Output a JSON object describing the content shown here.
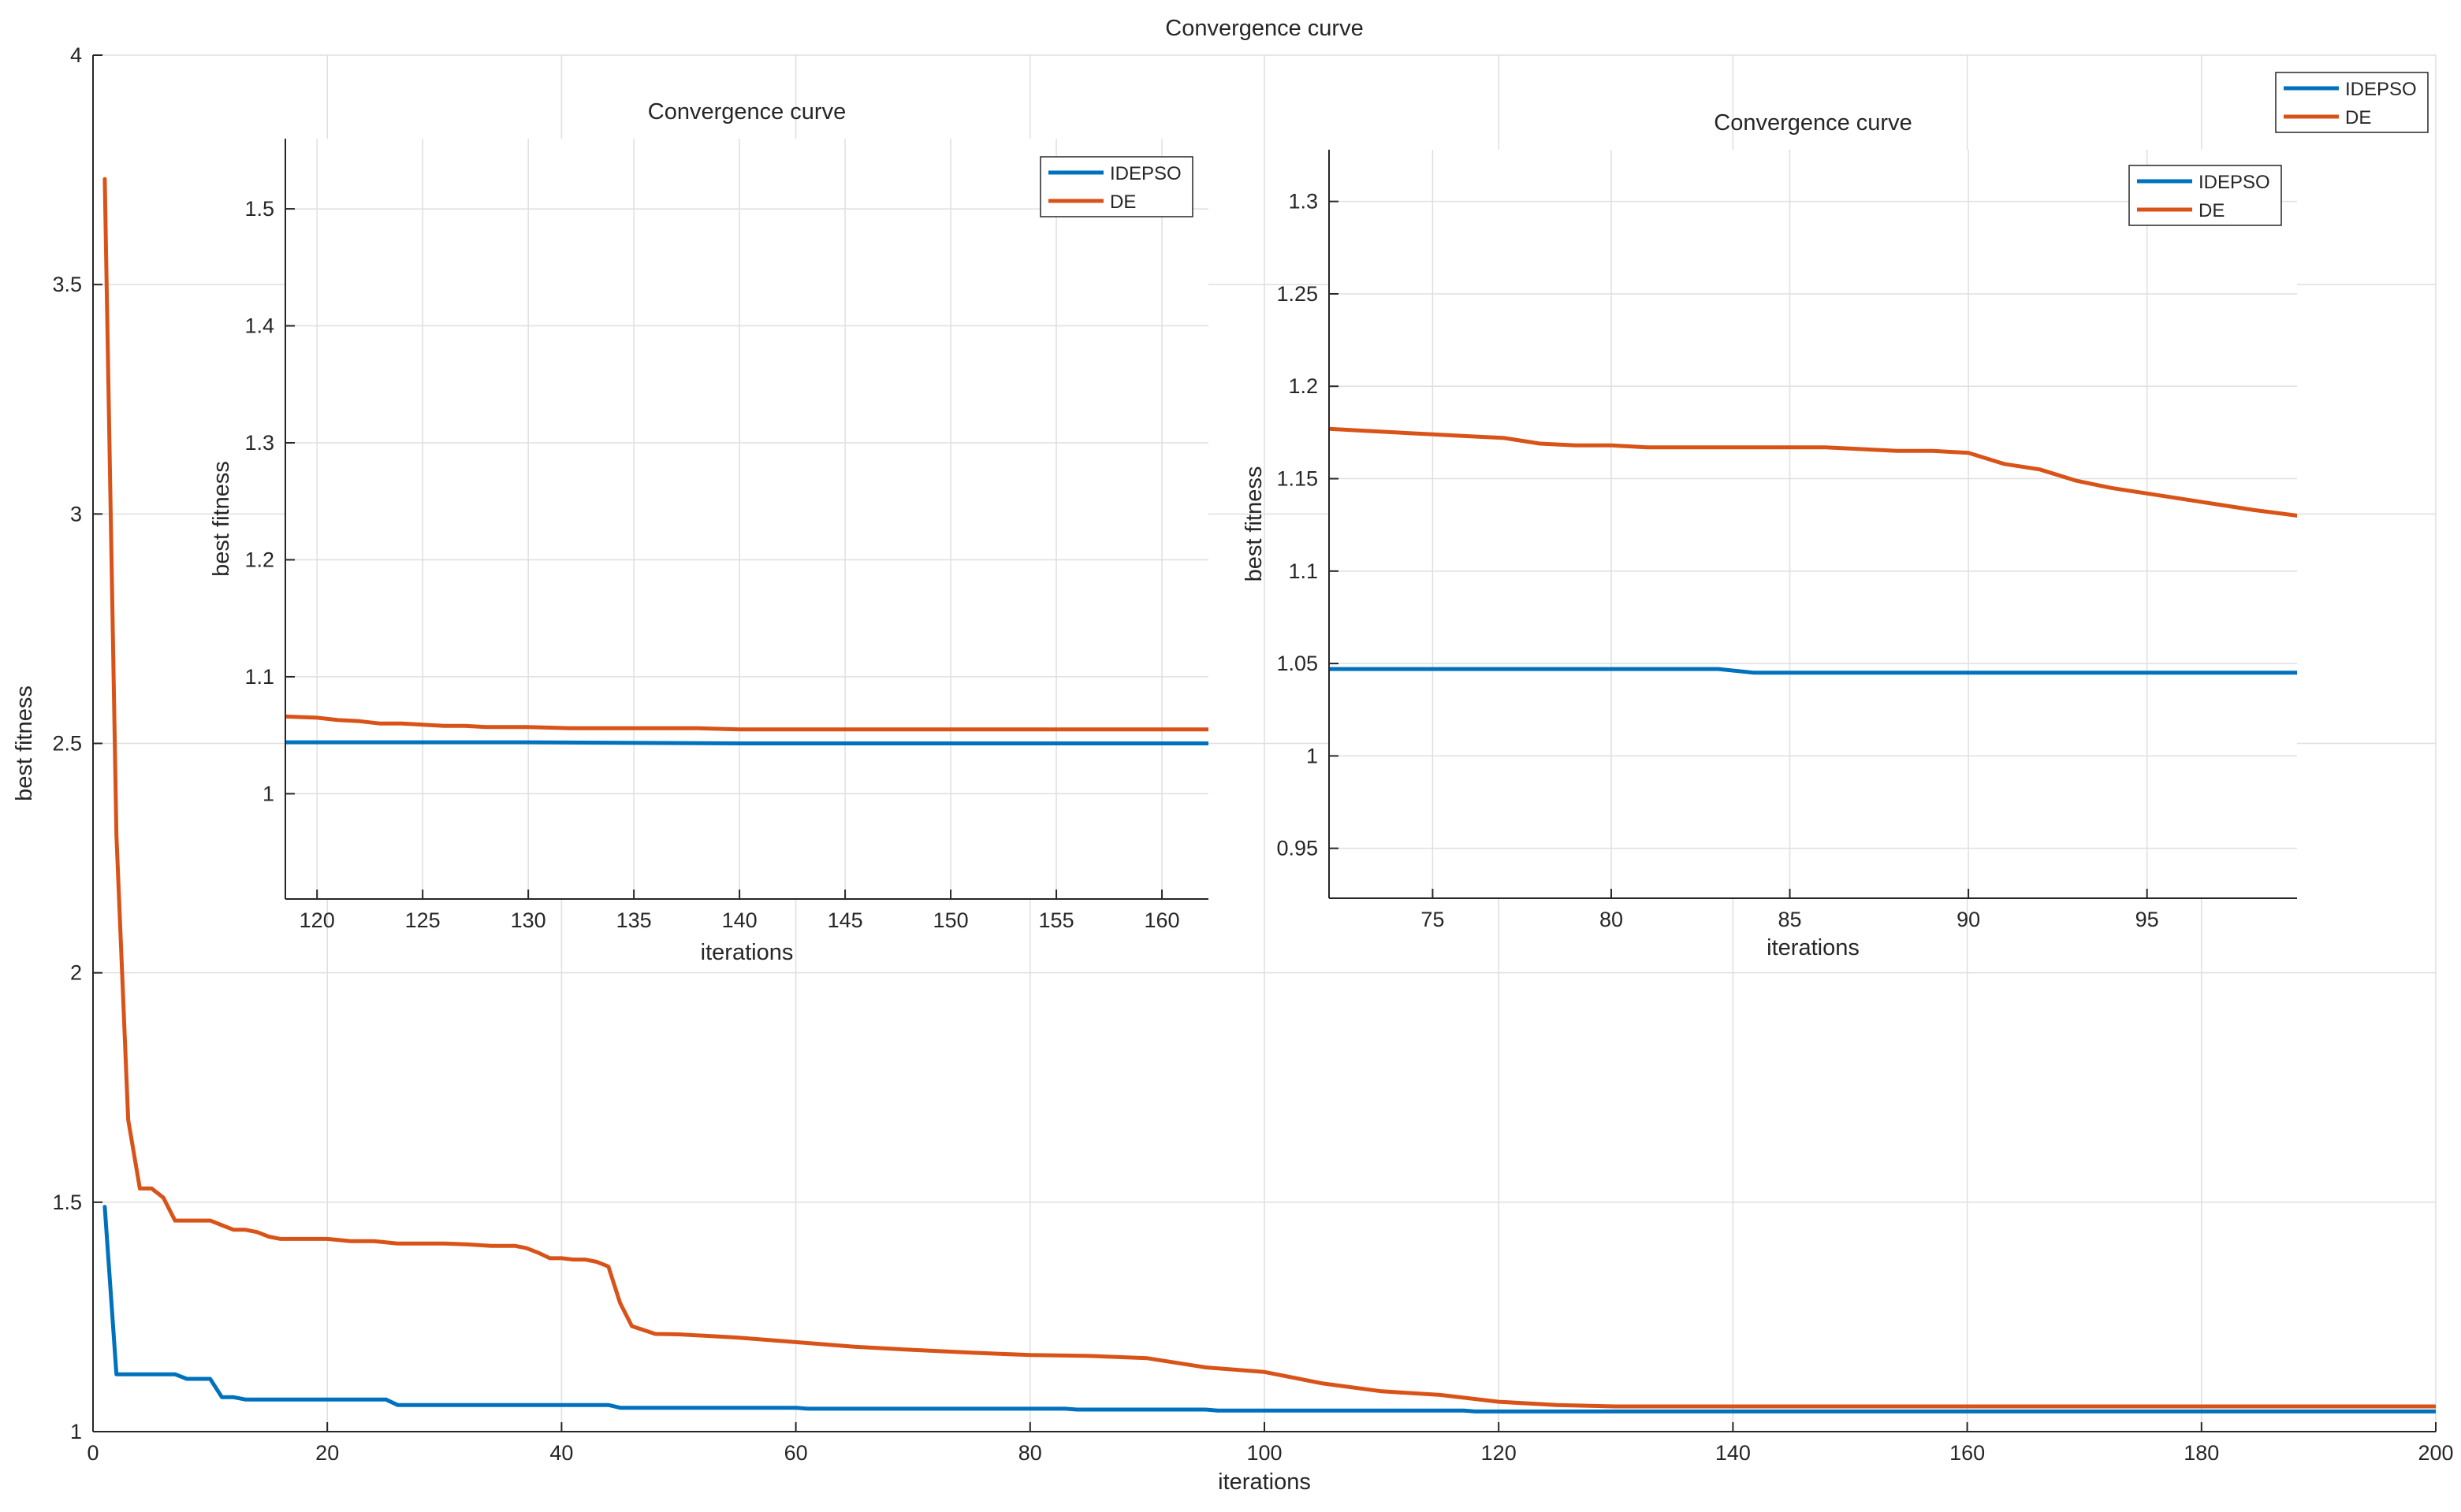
{
  "chart_data": [
    {
      "type": "line",
      "title": "Convergence curve",
      "xlabel": "iterations",
      "ylabel": "best fitness",
      "xlim": [
        0,
        200
      ],
      "ylim": [
        1,
        4
      ],
      "xticks": [
        0,
        20,
        40,
        60,
        80,
        100,
        120,
        140,
        160,
        180,
        200
      ],
      "yticks": [
        1,
        1.5,
        2,
        2.5,
        3,
        3.5,
        4
      ],
      "grid": true,
      "legend": "top-right",
      "series": [
        {
          "name": "IDEPSO",
          "color": "#0072BD",
          "x": [
            1,
            2,
            3,
            4,
            5,
            6,
            7,
            8,
            9,
            10,
            11,
            12,
            13,
            14,
            15,
            20,
            25,
            26,
            30,
            35,
            40,
            44,
            45,
            50,
            60,
            61,
            70,
            80,
            83,
            84,
            90,
            95,
            96,
            100,
            110,
            117,
            118,
            130,
            140,
            150,
            160,
            170,
            180,
            190,
            200
          ],
          "y": [
            1.49,
            1.125,
            1.125,
            1.125,
            1.125,
            1.125,
            1.125,
            1.115,
            1.115,
            1.115,
            1.075,
            1.075,
            1.07,
            1.07,
            1.07,
            1.07,
            1.07,
            1.058,
            1.058,
            1.058,
            1.058,
            1.058,
            1.052,
            1.052,
            1.052,
            1.05,
            1.05,
            1.05,
            1.05,
            1.048,
            1.048,
            1.048,
            1.046,
            1.046,
            1.046,
            1.046,
            1.044,
            1.044,
            1.044,
            1.044,
            1.044,
            1.044,
            1.044,
            1.044,
            1.044
          ]
        },
        {
          "name": "DE",
          "color": "#D95319",
          "x": [
            1,
            2,
            3,
            4,
            5,
            6,
            7,
            8,
            9,
            10,
            11,
            12,
            13,
            14,
            15,
            16,
            17,
            18,
            19,
            20,
            22,
            24,
            26,
            28,
            30,
            32,
            34,
            36,
            37,
            38,
            39,
            40,
            41,
            42,
            43,
            44,
            45,
            46,
            48,
            50,
            55,
            60,
            65,
            70,
            75,
            80,
            85,
            90,
            95,
            100,
            105,
            110,
            115,
            120,
            125,
            130,
            140,
            150,
            160,
            170,
            180,
            190,
            200
          ],
          "y": [
            3.73,
            2.3,
            1.68,
            1.53,
            1.53,
            1.51,
            1.46,
            1.46,
            1.46,
            1.46,
            1.45,
            1.44,
            1.44,
            1.435,
            1.425,
            1.42,
            1.42,
            1.42,
            1.42,
            1.42,
            1.415,
            1.415,
            1.41,
            1.41,
            1.41,
            1.408,
            1.405,
            1.405,
            1.4,
            1.39,
            1.378,
            1.378,
            1.375,
            1.375,
            1.37,
            1.36,
            1.28,
            1.23,
            1.213,
            1.212,
            1.205,
            1.195,
            1.185,
            1.178,
            1.172,
            1.167,
            1.165,
            1.16,
            1.14,
            1.13,
            1.105,
            1.088,
            1.08,
            1.065,
            1.058,
            1.055,
            1.055,
            1.055,
            1.055,
            1.055,
            1.055,
            1.055,
            1.055
          ]
        }
      ]
    },
    {
      "type": "line",
      "title": "Convergence curve",
      "xlabel": "iterations",
      "ylabel": "best fitness",
      "xlim": [
        118.5,
        162.2
      ],
      "ylim": [
        0.91,
        1.56
      ],
      "xticks": [
        120,
        125,
        130,
        135,
        140,
        145,
        150,
        155,
        160
      ],
      "yticks": [
        1,
        1.1,
        1.2,
        1.3,
        1.4,
        1.5
      ],
      "grid": true,
      "legend": "top-right",
      "series": [
        {
          "name": "IDEPSO",
          "color": "#0072BD",
          "x": [
            118.5,
            130,
            140,
            150,
            162.2
          ],
          "y": [
            1.044,
            1.044,
            1.043,
            1.043,
            1.043
          ]
        },
        {
          "name": "DE",
          "color": "#D95319",
          "x": [
            118.5,
            120,
            121,
            122,
            123,
            124,
            125,
            126,
            127,
            128,
            130,
            132,
            133,
            135,
            138,
            140,
            145,
            150,
            155,
            160,
            162.2
          ],
          "y": [
            1.066,
            1.065,
            1.063,
            1.062,
            1.06,
            1.06,
            1.059,
            1.058,
            1.058,
            1.057,
            1.057,
            1.056,
            1.056,
            1.056,
            1.056,
            1.055,
            1.055,
            1.055,
            1.055,
            1.055,
            1.055
          ]
        }
      ]
    },
    {
      "type": "line",
      "title": "Convergence curve",
      "xlabel": "iterations",
      "ylabel": "best fitness",
      "xlim": [
        72.1,
        99.2
      ],
      "ylim": [
        0.923,
        1.328
      ],
      "xticks": [
        75,
        80,
        85,
        90,
        95
      ],
      "yticks": [
        0.95,
        1,
        1.05,
        1.1,
        1.15,
        1.2,
        1.25,
        1.3
      ],
      "grid": true,
      "legend": "top-right",
      "series": [
        {
          "name": "IDEPSO",
          "color": "#0072BD",
          "x": [
            72.1,
            75,
            80,
            83,
            84,
            85,
            90,
            95,
            99.2
          ],
          "y": [
            1.047,
            1.047,
            1.047,
            1.047,
            1.045,
            1.045,
            1.045,
            1.045,
            1.045
          ]
        },
        {
          "name": "DE",
          "color": "#D95319",
          "x": [
            72.1,
            73,
            74,
            75,
            76,
            77,
            78,
            79,
            80,
            81,
            82,
            83,
            84,
            85,
            86,
            87,
            88,
            89,
            90,
            91,
            92,
            93,
            94,
            95,
            96,
            97,
            98,
            99.2
          ],
          "y": [
            1.177,
            1.176,
            1.175,
            1.174,
            1.173,
            1.172,
            1.169,
            1.168,
            1.168,
            1.167,
            1.167,
            1.167,
            1.167,
            1.167,
            1.167,
            1.166,
            1.165,
            1.165,
            1.164,
            1.158,
            1.155,
            1.149,
            1.145,
            1.142,
            1.139,
            1.136,
            1.133,
            1.13
          ]
        }
      ]
    }
  ]
}
